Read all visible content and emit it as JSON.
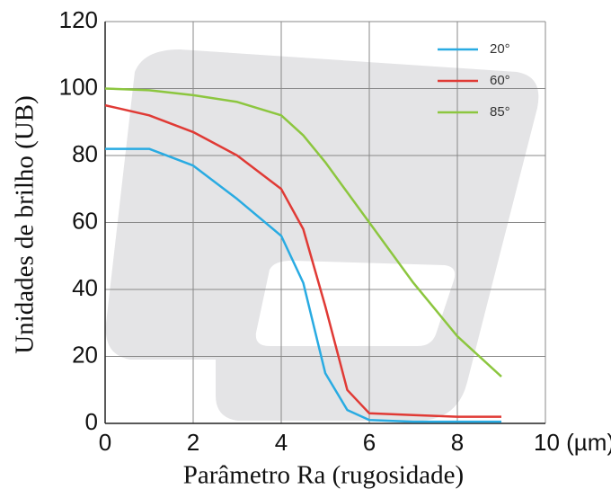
{
  "chart_data": {
    "type": "line",
    "xlabel": "Parâmetro Ra (rugosidade)",
    "ylabel": "Unidades de brilho (UB)",
    "x": [
      0,
      1,
      2,
      3,
      4,
      4.5,
      5,
      5.5,
      6,
      7,
      8,
      9
    ],
    "series": [
      {
        "name": "20°",
        "color": "#29abe2",
        "values": [
          82,
          82,
          77,
          67,
          56,
          42,
          15,
          4,
          1,
          0.5,
          0.5,
          0.5
        ]
      },
      {
        "name": "60°",
        "color": "#e03a35",
        "values": [
          95,
          92,
          87,
          80,
          70,
          58,
          35,
          10,
          3,
          2.5,
          2,
          2
        ]
      },
      {
        "name": "85°",
        "color": "#8cc63f",
        "values": [
          100,
          99.5,
          98,
          96,
          92,
          86,
          78,
          69,
          60,
          42,
          26,
          14
        ]
      }
    ],
    "xlim": [
      0,
      10
    ],
    "xticks": [
      0,
      2,
      4,
      6,
      8,
      {
        "value": 10,
        "label": "10 (µm)"
      }
    ],
    "ylim": [
      0,
      120
    ],
    "yticks": [
      0,
      20,
      40,
      60,
      80,
      100,
      120
    ],
    "grid": true,
    "legend": "upper right"
  }
}
